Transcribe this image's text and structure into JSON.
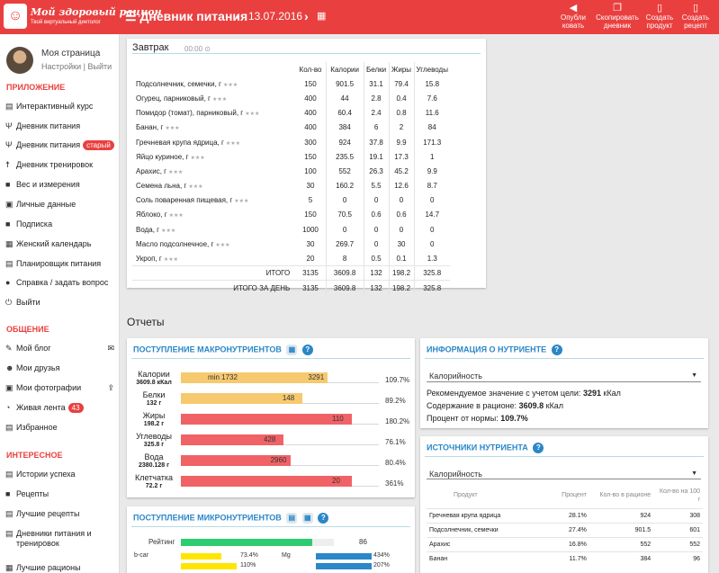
{
  "app": {
    "logo_title": "Мой здоровый рацион",
    "logo_subtitle": "Твой виртуальный диетолог",
    "page_title": "Дневник питания",
    "date": "13.07.2016",
    "actions": [
      {
        "icon": "megaphone-icon",
        "label1": "Опубли",
        "label2": "ковать"
      },
      {
        "icon": "copy-icon",
        "label1": "Скопировать",
        "label2": "дневник"
      },
      {
        "icon": "document-icon",
        "label1": "Создать",
        "label2": "продукт"
      },
      {
        "icon": "document-icon",
        "label1": "Создать",
        "label2": "рецепт"
      }
    ]
  },
  "sidebar": {
    "profile_name": "Моя страница",
    "profile_settings": "Настройки",
    "profile_sep": "|",
    "profile_logout": "Выйти",
    "section_app": "ПРИЛОЖЕНИЕ",
    "app_items": [
      {
        "label": "Интерактивный курс"
      },
      {
        "label": "Дневник питания"
      },
      {
        "label": "Дневник питания",
        "badge": "старый"
      },
      {
        "label": "Дневник тренировок"
      },
      {
        "label": "Вес и измерения"
      },
      {
        "label": "Личные данные"
      },
      {
        "label": "Подписка"
      },
      {
        "label": "Женский календарь"
      },
      {
        "label": "Планировщик питания"
      },
      {
        "label": "Справка / задать вопрос"
      },
      {
        "label": "Выйти"
      }
    ],
    "section_social": "ОБЩЕНИЕ",
    "social_items": [
      {
        "label": "Мой блог"
      },
      {
        "label": "Мои друзья"
      },
      {
        "label": "Мои фотографии"
      },
      {
        "label": "Живая лента",
        "badge": "43"
      },
      {
        "label": "Избранное"
      }
    ],
    "section_interesting": "ИНТЕРЕСНОЕ",
    "interesting_items": [
      {
        "label": "Истории успеха"
      },
      {
        "label": "Рецепты"
      },
      {
        "label": "Лучшие рецепты"
      },
      {
        "label": "Дневники питания и"
      },
      {
        "label": "тренировок"
      },
      {
        "label": "Лучшие рационы"
      }
    ]
  },
  "breakfast": {
    "title": "Завтрак",
    "time": "00:00",
    "columns": [
      "",
      "Кол-во",
      "Калории",
      "Белки",
      "Жиры",
      "Углеводы"
    ],
    "rows": [
      [
        "Подсолнечник, семечки, г",
        "150",
        "901.5",
        "31.1",
        "79.4",
        "15.8"
      ],
      [
        "Огурец, парниковый, г",
        "400",
        "44",
        "2.8",
        "0.4",
        "7.6"
      ],
      [
        "Помидор (томат), парниковый, г",
        "400",
        "60.4",
        "2.4",
        "0.8",
        "11.6"
      ],
      [
        "Банан, г",
        "400",
        "384",
        "6",
        "2",
        "84"
      ],
      [
        "Гречневая крупа ядрица, г",
        "300",
        "924",
        "37.8",
        "9.9",
        "171.3"
      ],
      [
        "Яйцо куриное, г",
        "150",
        "235.5",
        "19.1",
        "17.3",
        "1"
      ],
      [
        "Арахис, г",
        "100",
        "552",
        "26.3",
        "45.2",
        "9.9"
      ],
      [
        "Семена льна, г",
        "30",
        "160.2",
        "5.5",
        "12.6",
        "8.7"
      ],
      [
        "Соль поваренная пищевая, г",
        "5",
        "0",
        "0",
        "0",
        "0"
      ],
      [
        "Яблоко, г",
        "150",
        "70.5",
        "0.6",
        "0.6",
        "14.7"
      ],
      [
        "Вода, г",
        "1000",
        "0",
        "0",
        "0",
        "0"
      ],
      [
        "Масло подсолнечное, г",
        "30",
        "269.7",
        "0",
        "30",
        "0"
      ],
      [
        "Укроп, г",
        "20",
        "8",
        "0.5",
        "0.1",
        "1.3"
      ]
    ],
    "totals": [
      [
        "ИТОГО",
        "3135",
        "3609.8",
        "132",
        "198.2",
        "325.8"
      ],
      [
        "ИТОГО ЗА ДЕНЬ",
        "3135",
        "3609.8",
        "132",
        "198.2",
        "325.8"
      ]
    ]
  },
  "reports_title": "Отчеты",
  "macro": {
    "title": "ПОСТУПЛЕНИЕ МАКРОНУТРИЕНТОВ",
    "calorie_min": "min 1732",
    "colors": {
      "ok": "#f7c96f",
      "over": "#f06266"
    },
    "rows": [
      {
        "name": "Калории",
        "sub": "3609.8 кКал",
        "value": "3291",
        "pct": "109.7%",
        "fill": 0.86,
        "color": "#f7c96f"
      },
      {
        "name": "Белки",
        "sub": "132 г",
        "value": "148",
        "pct": "89.2%",
        "fill": 0.71,
        "color": "#f7c96f"
      },
      {
        "name": "Жиры",
        "sub": "198.2 г",
        "value": "110",
        "pct": "180.2%",
        "fill": 1.0,
        "color": "#f06266"
      },
      {
        "name": "Углеводы",
        "sub": "325.8 г",
        "value": "428",
        "pct": "76.1%",
        "fill": 0.6,
        "color": "#f06266"
      },
      {
        "name": "Вода",
        "sub": "2380.128 г",
        "value": "2960",
        "pct": "80.4%",
        "fill": 0.64,
        "color": "#f06266"
      },
      {
        "name": "Клетчатка",
        "sub": "72.2 г",
        "value": "20",
        "pct": "361%",
        "fill": 1.0,
        "color": "#f06266"
      }
    ]
  },
  "micro": {
    "title": "ПОСТУПЛЕНИЕ МИКРОНУТРИЕНТОВ",
    "rating_label": "Рейтинг",
    "rating_value": "86",
    "rating_fill": 0.86,
    "left_rows": [
      {
        "name": "b-car",
        "pct": "73.4%",
        "fill": 0.73
      },
      {
        "name": "",
        "pct": "110%",
        "fill": 1.0
      }
    ],
    "right_rows": [
      {
        "name": "Mg",
        "pct": "434%",
        "fill": 1.0
      },
      {
        "name": "",
        "pct": "207%",
        "fill": 1.0
      }
    ]
  },
  "nutrient_info": {
    "title": "ИНФОРМАЦИЯ О НУТРИЕНТЕ",
    "selected": "Калорийность",
    "line1_prefix": "Рекомендуемое значение с учетом цели:",
    "line1_value": "3291",
    "line1_unit": "кКал",
    "line2_prefix": "Содержание в рационе:",
    "line2_value": "3609.8",
    "line2_unit": "кКал",
    "line3_prefix": "Процент от нормы:",
    "line3_value": "109.7%"
  },
  "sources": {
    "title": "ИСТОЧНИКИ НУТРИЕНТА",
    "selected": "Калорийность",
    "columns": [
      "Продукт",
      "Процент",
      "Кол-во в рационе",
      "Кол-во на 100 г"
    ],
    "rows": [
      [
        "Гречневая крупа ядрица",
        "28.1%",
        "924",
        "308"
      ],
      [
        "Подсолнечник, семечки",
        "27.4%",
        "901.5",
        "601"
      ],
      [
        "Арахис",
        "16.8%",
        "552",
        "552"
      ],
      [
        "Банан",
        "11.7%",
        "384",
        "96"
      ]
    ]
  }
}
